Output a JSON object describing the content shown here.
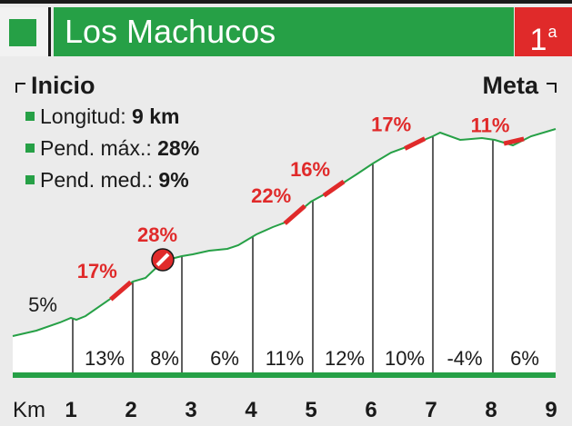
{
  "header": {
    "title": "Los Machucos",
    "category": "1",
    "category_sup": "a"
  },
  "labels": {
    "start": "Inicio",
    "finish": "Meta",
    "km_label": "Km"
  },
  "stats": [
    {
      "label": "Longitud:",
      "value": "9 km"
    },
    {
      "label": "Pend. máx.:",
      "value": "28%"
    },
    {
      "label": "Pend. med.:",
      "value": "9%"
    }
  ],
  "colors": {
    "green": "#26a046",
    "red": "#e02a2a",
    "text": "#1a1a1a"
  },
  "chart_data": {
    "type": "area",
    "xlabel": "Km",
    "x_ticks": [
      "1",
      "2",
      "3",
      "4",
      "5",
      "6",
      "7",
      "8",
      "9"
    ],
    "segment_gradients": [
      "5%",
      "13%",
      "8%",
      "6%",
      "11%",
      "12%",
      "10%",
      "-4%",
      "6%"
    ],
    "steep_ramps": [
      {
        "label": "17%",
        "km": 1.8
      },
      {
        "label": "28%",
        "km": 2.5,
        "marker": "max-gradient-icon"
      },
      {
        "label": "22%",
        "km": 4.7
      },
      {
        "label": "16%",
        "km": 5.35
      },
      {
        "label": "17%",
        "km": 6.7
      },
      {
        "label": "11%",
        "km": 8.35
      }
    ]
  }
}
